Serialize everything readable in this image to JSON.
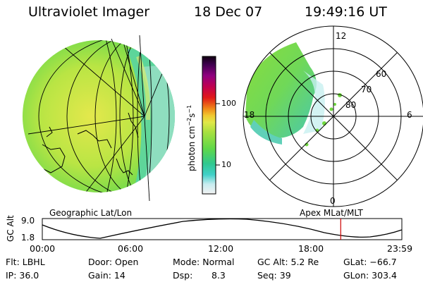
{
  "header": {
    "instrument": "Ultraviolet Imager",
    "date": "18 Dec 07",
    "time": "19:49:16 UT"
  },
  "left_panel": {
    "label": "Geographic Lat/Lon"
  },
  "right_panel": {
    "label": "Apex MLat/MLT",
    "mlt_labels": [
      "12",
      "18",
      "6",
      "0"
    ],
    "lat_labels": [
      "60",
      "70",
      "80"
    ]
  },
  "colorbar": {
    "unit_label": "photon cm",
    "unit_exp1": "−2",
    "unit_s": "s",
    "unit_exp2": "−1",
    "tick_100": "100",
    "tick_10": "10"
  },
  "altitude_plot": {
    "ylabel": "GC Alt",
    "y_top": "9.0",
    "y_bottom": "1.8",
    "x_ticks": [
      "00:00",
      "06:00",
      "12:00",
      "18:00",
      "23:59"
    ],
    "current_marker_fraction": 0.83
  },
  "info": {
    "filter": "Flt: LBHL",
    "ip": "IP: 36.0",
    "door": "Door: Open",
    "gain": "Gain: 14",
    "mode": "Mode: Normal",
    "dsp_label": "Dsp:",
    "dsp_value": "8.3",
    "gc_alt": "GC Alt: 5.2 Re",
    "seq": "Seq: 39",
    "glat": "GLat: −66.7",
    "glon": "GLon: 303.4"
  },
  "colors": {
    "marker": "#cc0000",
    "accent_green": "#9de23c",
    "accent_yellow": "#e8e84a",
    "accent_cyan": "#40d0c0"
  }
}
